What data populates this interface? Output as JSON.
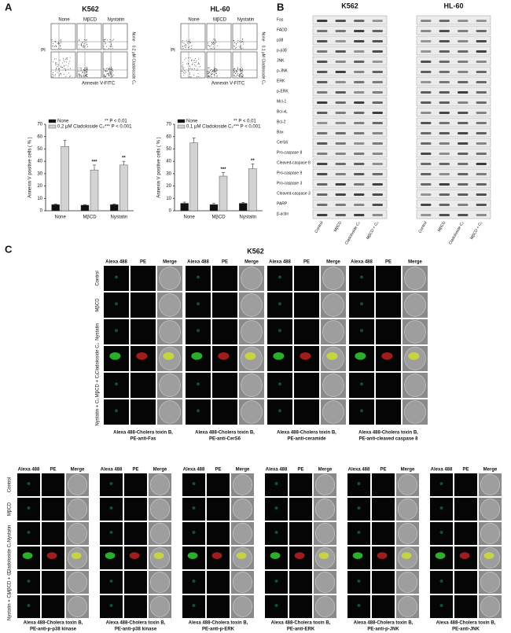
{
  "chart_data": [
    {
      "type": "bar",
      "y_label": "Annexin V positive cells ( % )",
      "categories": [
        "None",
        "MβCD",
        "Nystatin"
      ],
      "series": [
        {
          "name": "None",
          "color": "#111111",
          "values": [
            5,
            4.5,
            5
          ],
          "errors": [
            0.5,
            0.5,
            0.5
          ]
        },
        {
          "name": "0.2 μM Cladoloside C₂",
          "color": "#d3d3d3",
          "values": [
            52,
            33,
            37
          ],
          "errors": [
            5,
            4,
            3
          ],
          "significance": [
            null,
            "***",
            "**"
          ]
        }
      ],
      "notes": [
        "** P < 0.01",
        "*** P < 0.001"
      ],
      "ylim": [
        0,
        70
      ],
      "yticks": [
        0,
        10,
        20,
        30,
        40,
        50,
        60,
        70
      ]
    },
    {
      "type": "bar",
      "y_label": "Annexin V positive cells ( % )",
      "categories": [
        "None",
        "MβCD",
        "Nystatin"
      ],
      "series": [
        {
          "name": "None",
          "color": "#111111",
          "values": [
            6,
            5,
            6
          ],
          "errors": [
            1,
            1,
            0.8
          ]
        },
        {
          "name": "0.1 μM Cladoloside C₂",
          "color": "#d3d3d3",
          "values": [
            55,
            28,
            34
          ],
          "errors": [
            4,
            3,
            4
          ],
          "significance": [
            null,
            "***",
            "**"
          ]
        }
      ],
      "notes": [
        "** P < 0.01",
        "*** P < 0.001"
      ],
      "ylim": [
        0,
        70
      ],
      "yticks": [
        0,
        10,
        20,
        30,
        40,
        50,
        60,
        70
      ]
    }
  ],
  "panel_a": {
    "label": "A",
    "flow": [
      {
        "title": "K562",
        "columns": [
          "None",
          "MβCD",
          "Nystatin"
        ],
        "row_labels": [
          "None",
          "0.2 μM Cladoloside C₂"
        ],
        "y_label": "PI",
        "x_label": "Annexin V-FITC"
      },
      {
        "title": "HL-60",
        "columns": [
          "None",
          "MβCD",
          "Nystatin"
        ],
        "row_labels": [
          "None",
          "0.1 μM Cladoloside C₂"
        ],
        "y_label": "PI",
        "x_label": "Annexin V-FITC"
      }
    ]
  },
  "panel_b": {
    "label": "B",
    "cell_lines": [
      "K562",
      "HL-60"
    ],
    "rows": [
      "Fas",
      "FADD",
      "p38",
      "p-p38",
      "JNK",
      "p-JNK",
      "ERK",
      "p-ERK",
      "Mcl-1",
      "Bcl-xL",
      "Bcl-2",
      "Bax",
      "CerS6",
      "Pro-caspase 8",
      "Cleaved-caspase 8",
      "Pro-caspase 9",
      "Pro-caspase 3",
      "Cleaved-caspase 3",
      "PARP",
      "β-actin"
    ],
    "lanes": [
      "Control",
      "MβCD",
      "Cladoloside C₂",
      "MβCD + C₂"
    ]
  },
  "panel_c": {
    "label": "C",
    "title": "K562",
    "columns": [
      "Alexa 488",
      "PE",
      "Merge"
    ],
    "row_labels": [
      "Control",
      "MβCD",
      "Nystatin",
      "Cladoloside C₂",
      "MβCD + C₂",
      "Nystatin + C₂"
    ],
    "top_captions": [
      [
        "Alexa 488-Cholera toxin B,",
        "PE-anti-Fas"
      ],
      [
        "Alexa 488-Cholera toxin B,",
        "PE-anti-CerS6"
      ],
      [
        "Alexa 488-Cholera toxin B,",
        "PE-anti-ceramide"
      ],
      [
        "Alexa 488-Cholera toxin B,",
        "PE-anti-cleaved caspase 8"
      ]
    ],
    "bottom_captions": [
      [
        "Alexa 488-Cholera toxin B,",
        "PE-anti-p-p38 kinase"
      ],
      [
        "Alexa 488-Cholera toxin B,",
        "PE-anti-p38 kinase"
      ],
      [
        "Alexa 488-Cholera toxin B,",
        "PE-anti-p-ERK"
      ],
      [
        "Alexa 488-Cholera toxin B,",
        "PE-anti-ERK"
      ],
      [
        "Alexa 488-Cholera toxin B,",
        "PE-anti-p-JNK"
      ],
      [
        "Alexa 488-Cholera toxin B,",
        "PE-anti-JNK"
      ]
    ]
  }
}
